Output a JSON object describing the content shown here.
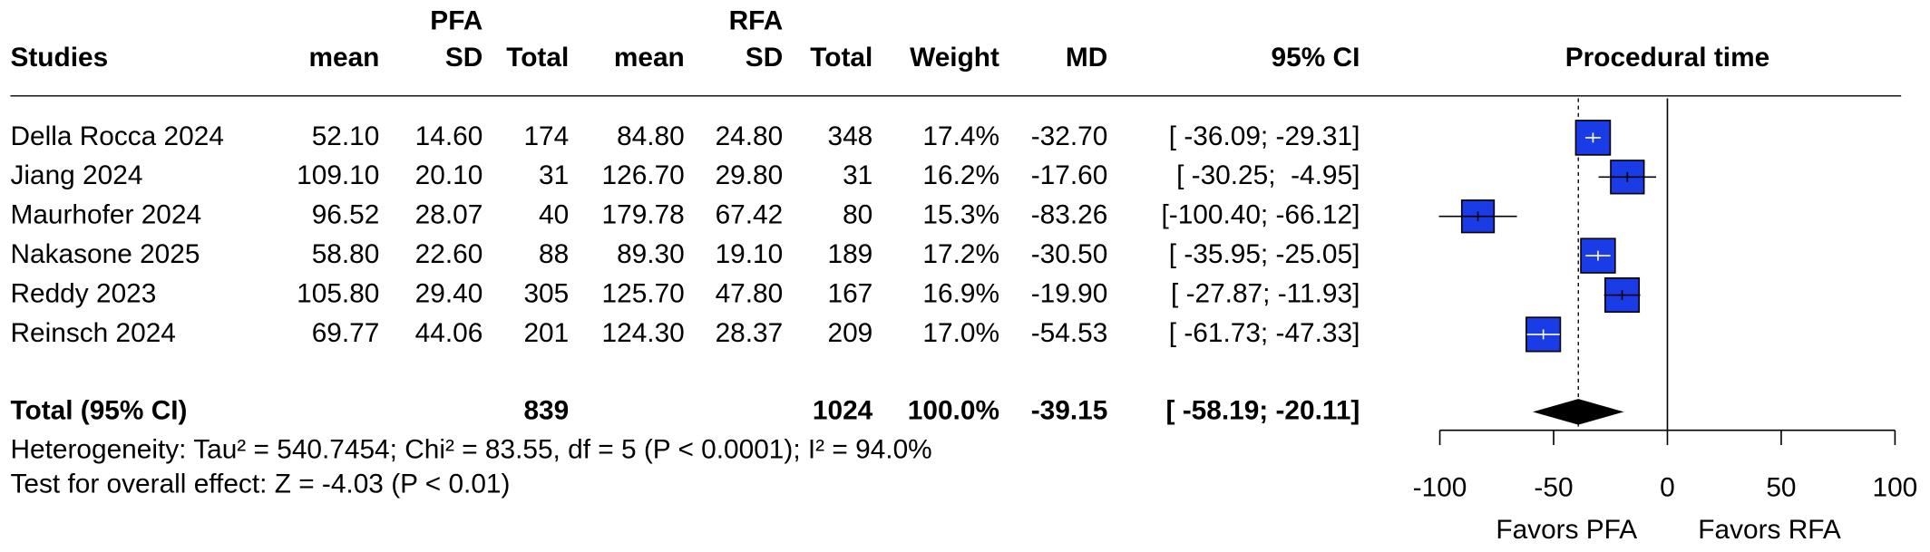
{
  "chart_data": {
    "type": "forest",
    "title": "Procedural time",
    "group_labels": [
      "PFA",
      "RFA"
    ],
    "columns": [
      "Studies",
      "mean",
      "SD",
      "Total",
      "mean",
      "SD",
      "Total",
      "Weight",
      "MD",
      "95% CI"
    ],
    "studies": [
      {
        "cells": [
          "Della Rocca 2024",
          "52.10",
          "14.60",
          "174",
          "84.80",
          "24.80",
          "348",
          "17.4%",
          "-32.70",
          "[ -36.09; -29.31]"
        ],
        "md": -32.7,
        "ci": [
          -36.09,
          -29.31
        ],
        "weight": 17.4
      },
      {
        "cells": [
          "Jiang 2024",
          "109.10",
          "20.10",
          "31",
          "126.70",
          "29.80",
          "31",
          "16.2%",
          "-17.60",
          "[ -30.25;  -4.95]"
        ],
        "md": -17.6,
        "ci": [
          -30.25,
          -4.95
        ],
        "weight": 16.2
      },
      {
        "cells": [
          "Maurhofer 2024",
          "96.52",
          "28.07",
          "40",
          "179.78",
          "67.42",
          "80",
          "15.3%",
          "-83.26",
          "[-100.40; -66.12]"
        ],
        "md": -83.26,
        "ci": [
          -100.4,
          -66.12
        ],
        "weight": 15.3
      },
      {
        "cells": [
          "Nakasone 2025",
          "58.80",
          "22.60",
          "88",
          "89.30",
          "19.10",
          "189",
          "17.2%",
          "-30.50",
          "[ -35.95; -25.05]"
        ],
        "md": -30.5,
        "ci": [
          -35.95,
          -25.05
        ],
        "weight": 17.2
      },
      {
        "cells": [
          "Reddy 2023",
          "105.80",
          "29.40",
          "305",
          "125.70",
          "47.80",
          "167",
          "16.9%",
          "-19.90",
          "[ -27.87; -11.93]"
        ],
        "md": -19.9,
        "ci": [
          -27.87,
          -11.93
        ],
        "weight": 16.9
      },
      {
        "cells": [
          "Reinsch 2024",
          "69.77",
          "44.06",
          "201",
          "124.30",
          "28.37",
          "209",
          "17.0%",
          "-54.53",
          "[ -61.73; -47.33]"
        ],
        "md": -54.53,
        "ci": [
          -61.73,
          -47.33
        ],
        "weight": 17.0
      }
    ],
    "total": {
      "label": "Total (95% CI)",
      "pfa_total": "839",
      "rfa_total": "1024",
      "weight_label": "100.0%",
      "md_label": "-39.15",
      "ci_label": "[ -58.19; -20.11]",
      "md": -39.15,
      "ci": [
        -58.19,
        -20.11
      ]
    },
    "heterogeneity": "Heterogeneity: Tau² = 540.7454; Chi² = 83.55, df = 5 (P < 0.0001); I² = 94.0%",
    "overall_test": "Test for overall effect: Z = -4.03 (P < 0.01)",
    "xlim": [
      -100,
      100
    ],
    "xticks": [
      -100,
      -50,
      0,
      50,
      100
    ],
    "x_labels": [
      "Favors PFA",
      "Favors RFA"
    ],
    "square_color": "#1a3ce6",
    "diamond_color": "#000000"
  }
}
